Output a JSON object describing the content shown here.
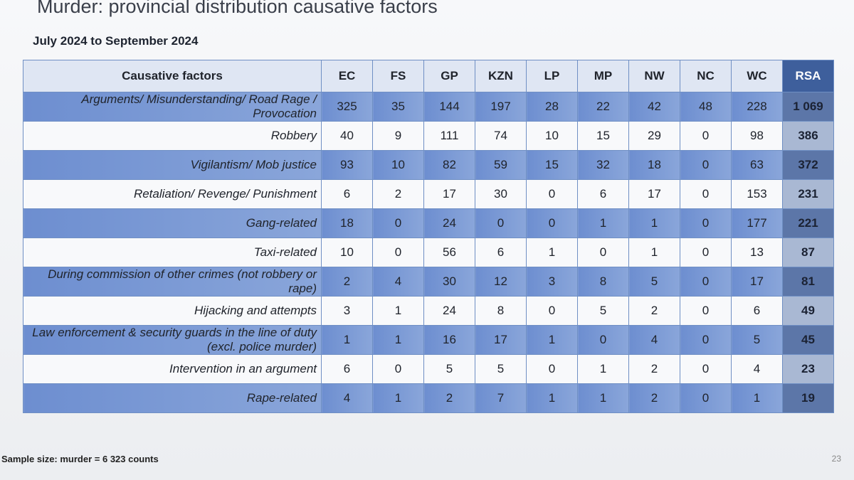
{
  "header": {
    "title": "Murder: provincial distribution causative factors",
    "subtitle": "July 2024 to September 2024"
  },
  "table": {
    "columns": [
      "Causative factors",
      "EC",
      "FS",
      "GP",
      "KZN",
      "LP",
      "MP",
      "NW",
      "NC",
      "WC",
      "RSA"
    ],
    "rows": [
      [
        "Arguments/ Misunderstanding/ Road Rage / Provocation",
        325,
        35,
        144,
        197,
        28,
        22,
        42,
        48,
        228,
        "1 069"
      ],
      [
        "Robbery",
        40,
        9,
        111,
        74,
        10,
        15,
        29,
        0,
        98,
        386
      ],
      [
        "Vigilantism/ Mob justice",
        93,
        10,
        82,
        59,
        15,
        32,
        18,
        0,
        63,
        372
      ],
      [
        "Retaliation/ Revenge/ Punishment",
        6,
        2,
        17,
        30,
        0,
        6,
        17,
        0,
        153,
        231
      ],
      [
        "Gang-related",
        18,
        0,
        24,
        0,
        0,
        1,
        1,
        0,
        177,
        221
      ],
      [
        "Taxi-related",
        10,
        0,
        56,
        6,
        1,
        0,
        1,
        0,
        13,
        87
      ],
      [
        "During commission of other crimes (not robbery or rape)",
        2,
        4,
        30,
        12,
        3,
        8,
        5,
        0,
        17,
        81
      ],
      [
        "Hijacking and attempts",
        3,
        1,
        24,
        8,
        0,
        5,
        2,
        0,
        6,
        49
      ],
      [
        "Law enforcement & security guards in the line of duty (excl. police murder)",
        1,
        1,
        16,
        17,
        1,
        0,
        4,
        0,
        5,
        45
      ],
      [
        "Intervention in an argument",
        6,
        0,
        5,
        5,
        0,
        1,
        2,
        0,
        4,
        23
      ],
      [
        "Rape-related",
        4,
        1,
        2,
        7,
        1,
        1,
        2,
        0,
        1,
        19
      ]
    ]
  },
  "footer": {
    "note": "Sample size: murder = 6 323 counts",
    "page_number": "23"
  }
}
